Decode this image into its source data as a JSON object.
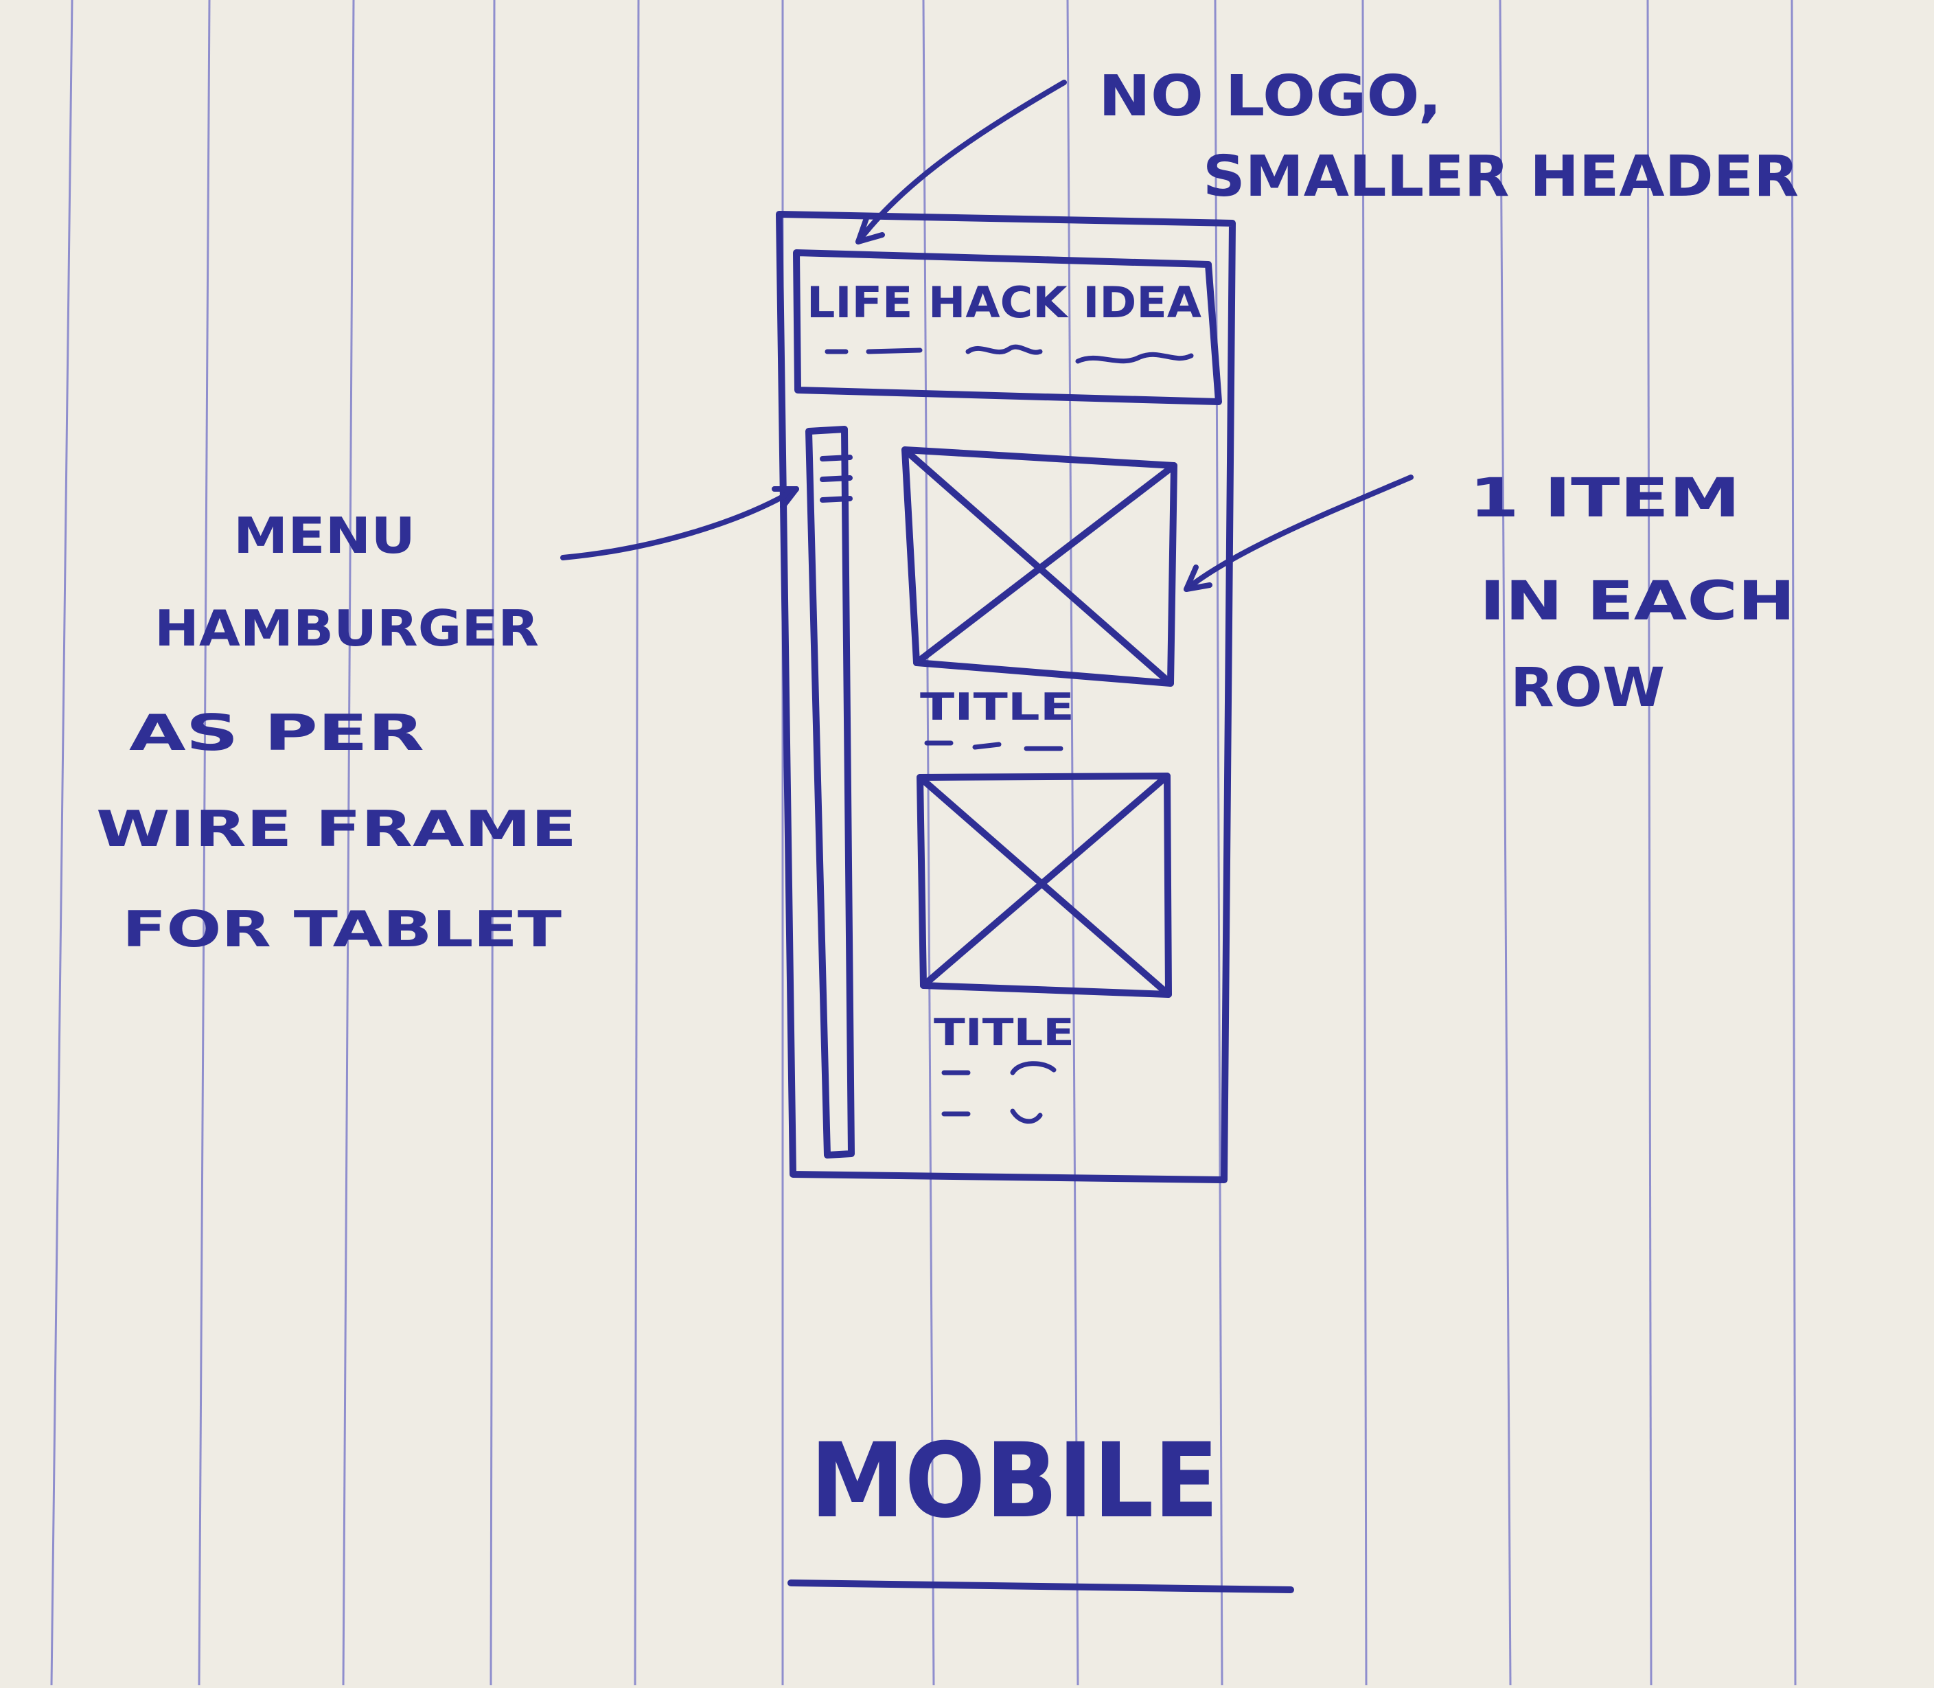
{
  "colors": {
    "paper": "#efece4",
    "rule_line": "#6f6fc6",
    "ink": "#2f2f95"
  },
  "wireframe": {
    "header_title": "LIFE HACK IDEA",
    "items": [
      {
        "title": "TITLE"
      },
      {
        "title": "TITLE"
      }
    ]
  },
  "annotations": {
    "header_note_line1": "NO LOGO,",
    "header_note_line2": "SMALLER HEADER",
    "menu_note": [
      "MENU",
      "HAMBURGER",
      "AS PER",
      "WIRE FRAME",
      "FOR TABLET"
    ],
    "item_note": [
      "1 ITEM",
      "IN EACH",
      "ROW"
    ]
  },
  "caption": "MOBILE"
}
